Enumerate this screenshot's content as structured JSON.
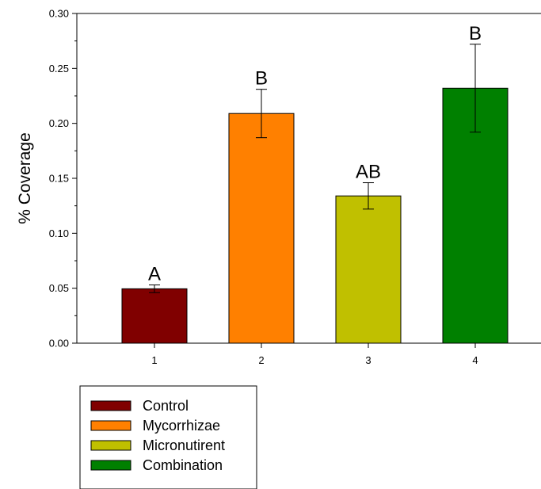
{
  "chart_data": {
    "type": "bar",
    "categories": [
      "1",
      "2",
      "3",
      "4"
    ],
    "values": [
      0.0495,
      0.209,
      0.134,
      0.232
    ],
    "errors": [
      0.0035,
      0.022,
      0.012,
      0.04
    ],
    "significance_labels": [
      "A",
      "B",
      "AB",
      "B"
    ],
    "colors": [
      "#800000",
      "#ff8000",
      "#c0c000",
      "#008000"
    ],
    "title": "",
    "xlabel": "",
    "ylabel": "% Coverage",
    "ylim": [
      0,
      0.3
    ],
    "yticks": [
      "0.00",
      "0.05",
      "0.10",
      "0.15",
      "0.20",
      "0.25",
      "0.30"
    ],
    "grid": false,
    "legend": {
      "placement": "bottom-left",
      "entries": [
        "Control",
        "Mycorrhizae",
        "Micronutirent",
        "Combination"
      ]
    }
  }
}
